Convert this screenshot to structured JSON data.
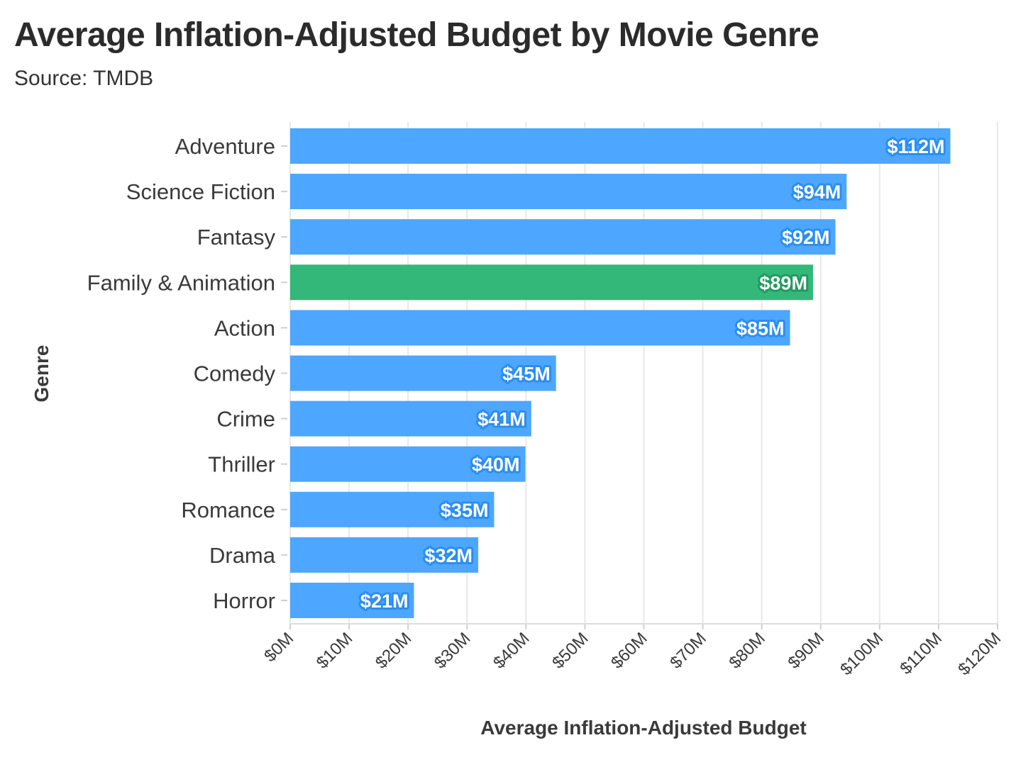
{
  "title": "Average Inflation-Adjusted Budget by Movie Genre",
  "subtitle": "Source: TMDB",
  "colors": {
    "default": "#4da6ff",
    "highlight": "#33b87a",
    "default_outline": "#2b8ef0",
    "highlight_outline": "#1f9a5f",
    "grid": "#e8e8e8"
  },
  "chart_data": {
    "type": "bar",
    "orientation": "horizontal",
    "title": "Average Inflation-Adjusted Budget by Movie Genre",
    "subtitle": "Source: TMDB",
    "xlabel": "Average Inflation-Adjusted Budget",
    "ylabel": "Genre",
    "categories": [
      "Adventure",
      "Science Fiction",
      "Fantasy",
      "Family & Animation",
      "Action",
      "Comedy",
      "Crime",
      "Thriller",
      "Romance",
      "Drama",
      "Horror"
    ],
    "values": [
      112,
      94.4,
      92.5,
      88.7,
      84.8,
      45.1,
      40.9,
      39.9,
      34.6,
      31.9,
      21
    ],
    "data_labels": [
      "$112M",
      "$94M",
      "$92M",
      "$89M",
      "$85M",
      "$45M",
      "$41M",
      "$40M",
      "$35M",
      "$32M",
      "$21M"
    ],
    "highlight": "Family & Animation",
    "unit": "million USD",
    "xlim": [
      0,
      120
    ],
    "xticks": [
      0,
      10,
      20,
      30,
      40,
      50,
      60,
      70,
      80,
      90,
      100,
      110,
      120
    ],
    "xtick_labels": [
      "$0M",
      "$10M",
      "$20M",
      "$30M",
      "$40M",
      "$50M",
      "$60M",
      "$70M",
      "$80M",
      "$90M",
      "$100M",
      "$110M",
      "$120M"
    ],
    "grid": true,
    "legend": "none"
  }
}
